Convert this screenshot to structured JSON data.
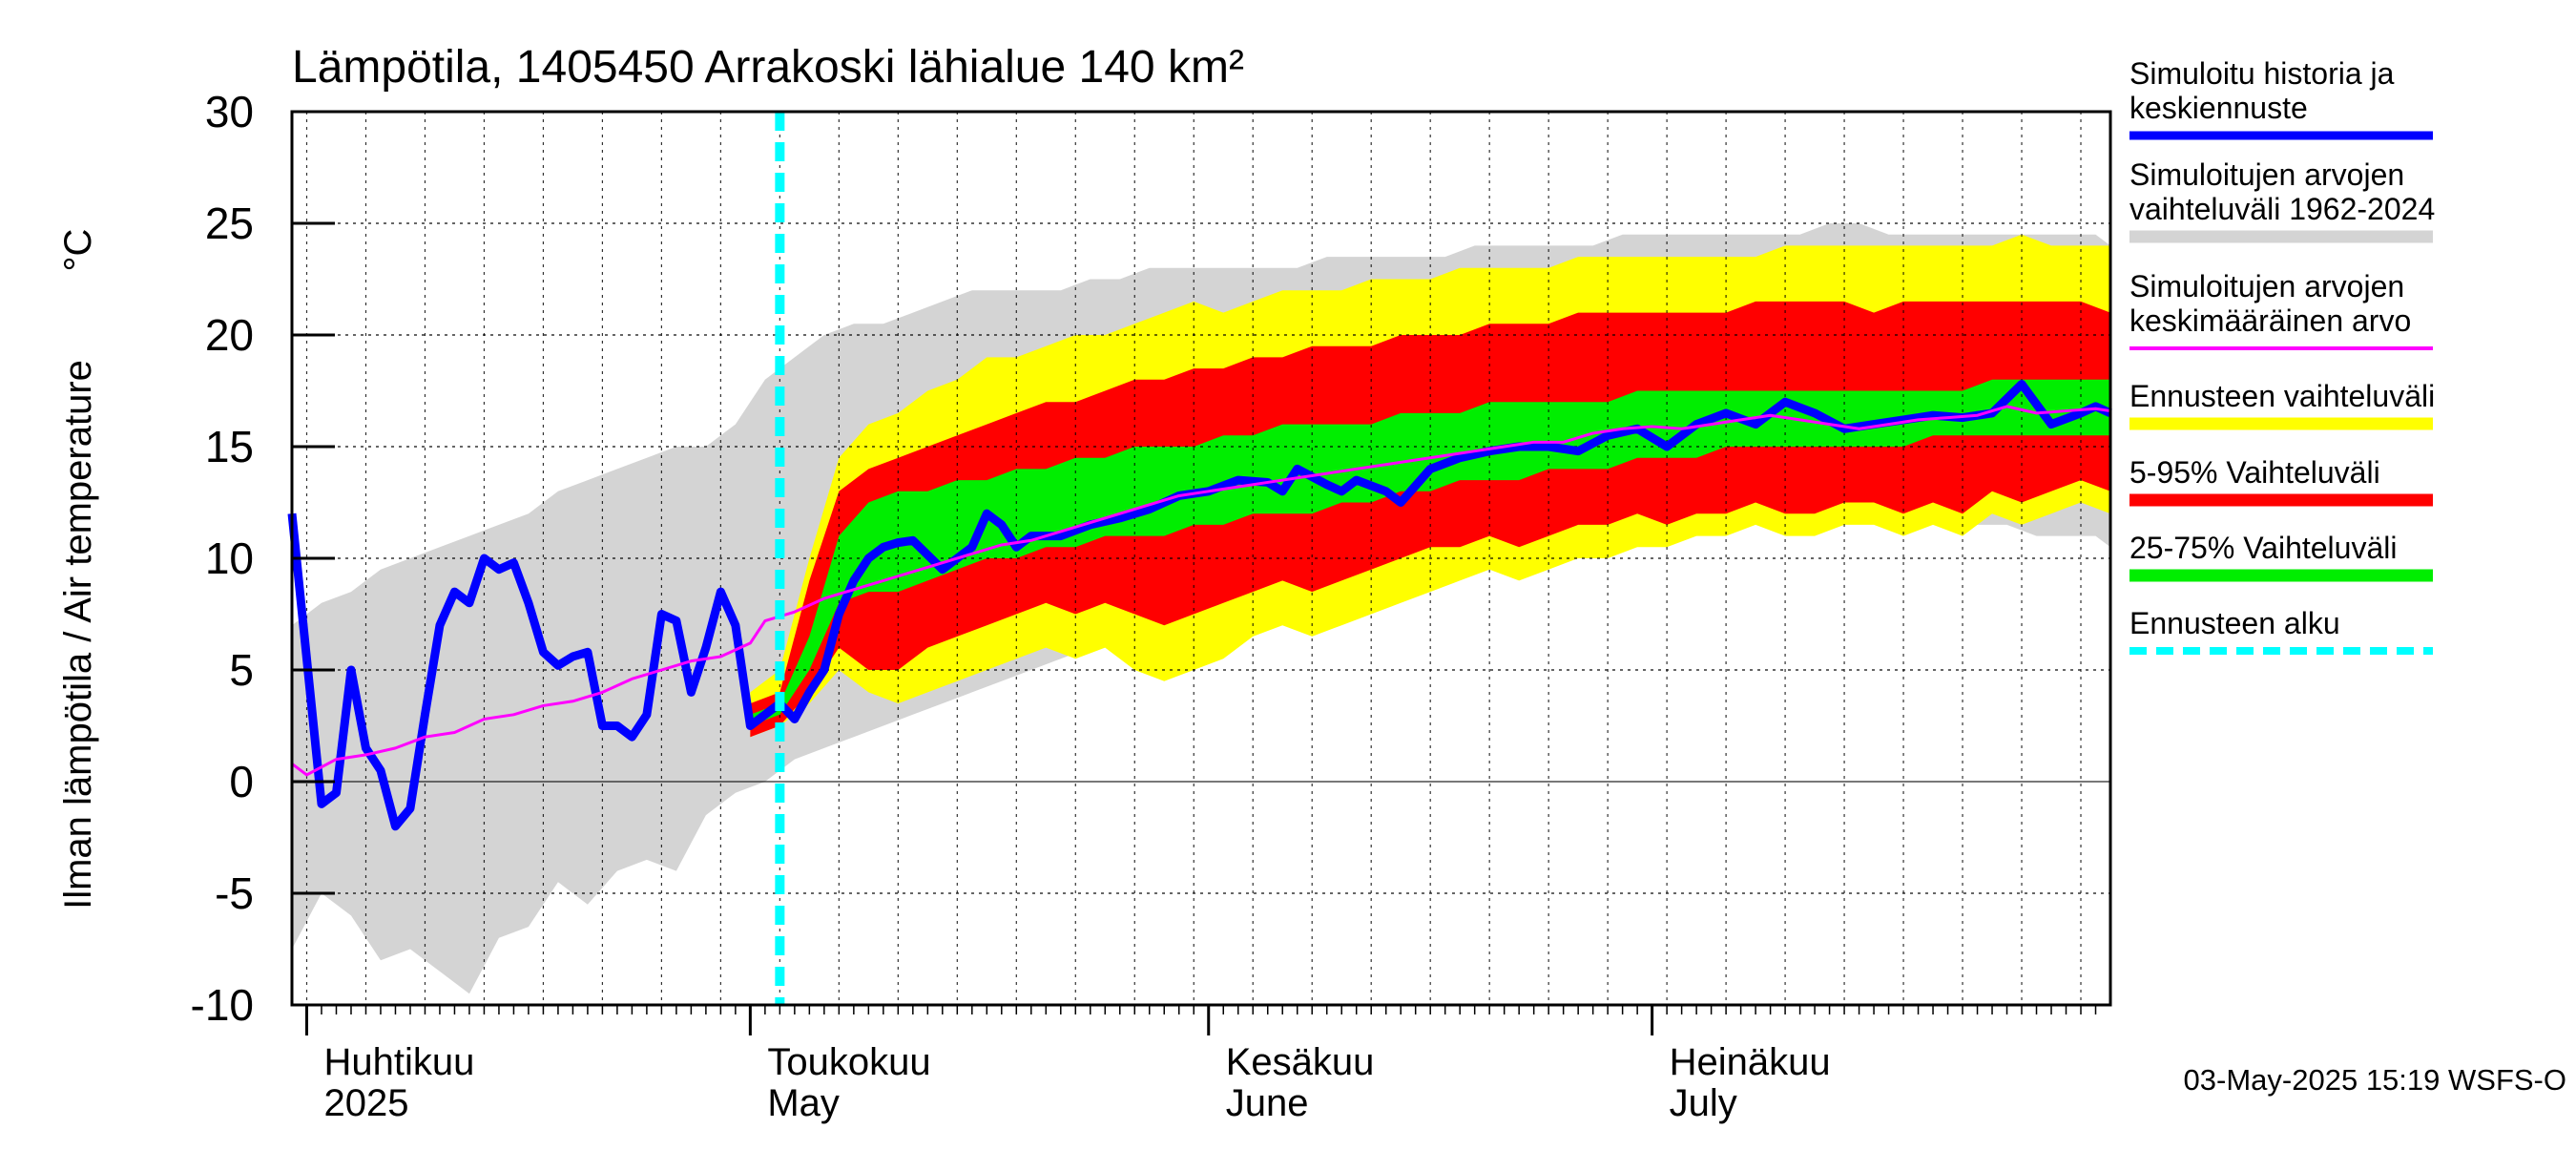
{
  "chart_data": {
    "type": "area",
    "title": "Lämpötila, 1405450 Arrakoski lähialue 140 km²",
    "ylabel": "Ilman lämpötila / Air temperature",
    "yunit": "°C",
    "xlabel": "",
    "ylim": [
      -10,
      30
    ],
    "yticks": [
      30,
      25,
      20,
      15,
      10,
      5,
      0,
      -5,
      -10
    ],
    "xlim": [
      "2025-03-31",
      "2025-08-01"
    ],
    "forecast_start": "2025-05-03",
    "x_tick_labels": [
      {
        "date": "2025-04-01",
        "fi": "Huhtikuu",
        "en": "2025"
      },
      {
        "date": "2025-05-01",
        "fi": "Toukokuu",
        "en": "May"
      },
      {
        "date": "2025-06-01",
        "fi": "Kesäkuu",
        "en": "June"
      },
      {
        "date": "2025-07-01",
        "fi": "Heinäkuu",
        "en": "July"
      }
    ],
    "grid": true,
    "legend_position": "right",
    "footer": "03-May-2025 15:19 WSFS-O",
    "colors": {
      "history_band": "#d4d4d4",
      "forecast_range": "#ffff00",
      "p5_95": "#ff0000",
      "p25_75": "#00ee00",
      "simulated": "#0000ff",
      "mean": "#ff00ff",
      "forecast_start": "#00ffff"
    },
    "series": [
      {
        "key": "simulated",
        "name": "Simuloitu historia ja keskiennuste",
        "x": [
          "2025-03-31",
          "2025-04-02",
          "2025-04-03",
          "2025-04-04",
          "2025-04-05",
          "2025-04-06",
          "2025-04-07",
          "2025-04-08",
          "2025-04-09",
          "2025-04-10",
          "2025-04-11",
          "2025-04-12",
          "2025-04-13",
          "2025-04-14",
          "2025-04-15",
          "2025-04-16",
          "2025-04-17",
          "2025-04-18",
          "2025-04-19",
          "2025-04-20",
          "2025-04-21",
          "2025-04-22",
          "2025-04-23",
          "2025-04-24",
          "2025-04-25",
          "2025-04-26",
          "2025-04-27",
          "2025-04-28",
          "2025-04-29",
          "2025-04-30",
          "2025-05-01",
          "2025-05-02",
          "2025-05-03",
          "2025-05-04",
          "2025-05-05",
          "2025-05-06",
          "2025-05-07",
          "2025-05-08",
          "2025-05-09",
          "2025-05-10",
          "2025-05-11",
          "2025-05-12",
          "2025-05-14",
          "2025-05-16",
          "2025-05-17",
          "2025-05-18",
          "2025-05-19",
          "2025-05-20",
          "2025-05-22",
          "2025-05-24",
          "2025-05-26",
          "2025-05-28",
          "2025-05-30",
          "2025-06-01",
          "2025-06-03",
          "2025-06-05",
          "2025-06-06",
          "2025-06-07",
          "2025-06-09",
          "2025-06-10",
          "2025-06-11",
          "2025-06-13",
          "2025-06-14",
          "2025-06-16",
          "2025-06-18",
          "2025-06-20",
          "2025-06-22",
          "2025-06-24",
          "2025-06-26",
          "2025-06-28",
          "2025-06-30",
          "2025-07-02",
          "2025-07-04",
          "2025-07-06",
          "2025-07-08",
          "2025-07-10",
          "2025-07-12",
          "2025-07-14",
          "2025-07-16",
          "2025-07-18",
          "2025-07-20",
          "2025-07-22",
          "2025-07-24",
          "2025-07-26",
          "2025-07-28",
          "2025-07-30",
          "2025-07-31",
          "2025-08-01"
        ],
        "values": [
          12.0,
          -1.0,
          -0.5,
          5.0,
          1.5,
          0.5,
          -2.0,
          -1.2,
          3.0,
          7.0,
          8.5,
          8.0,
          10.0,
          9.5,
          9.8,
          8.0,
          5.8,
          5.2,
          5.6,
          5.8,
          2.5,
          2.5,
          2.0,
          3.0,
          7.5,
          7.2,
          4.0,
          6.0,
          8.5,
          7.0,
          2.5,
          3.0,
          3.5,
          2.8,
          4.0,
          5.0,
          7.5,
          9.0,
          10.0,
          10.5,
          10.7,
          10.8,
          9.5,
          10.5,
          12.0,
          11.5,
          10.5,
          11.0,
          11.0,
          11.5,
          11.8,
          12.2,
          12.8,
          13.0,
          13.5,
          13.4,
          13.0,
          14.0,
          13.3,
          13.0,
          13.5,
          13.0,
          12.5,
          14.0,
          14.5,
          14.8,
          15.0,
          15.0,
          14.8,
          15.5,
          15.8,
          15.0,
          16.0,
          16.5,
          16.0,
          17.0,
          16.5,
          15.8,
          16.0,
          16.2,
          16.4,
          16.3,
          16.5,
          17.8,
          16.0,
          16.5,
          16.8,
          16.5
        ]
      },
      {
        "key": "mean",
        "name": "Simuloitujen arvojen keskimääräinen arvo",
        "x": [
          "2025-03-31",
          "2025-04-01",
          "2025-04-03",
          "2025-04-05",
          "2025-04-07",
          "2025-04-09",
          "2025-04-11",
          "2025-04-13",
          "2025-04-15",
          "2025-04-17",
          "2025-04-19",
          "2025-04-21",
          "2025-04-23",
          "2025-04-25",
          "2025-04-27",
          "2025-04-29",
          "2025-05-01",
          "2025-05-02",
          "2025-05-04",
          "2025-05-06",
          "2025-05-08",
          "2025-05-10",
          "2025-05-12",
          "2025-05-14",
          "2025-05-16",
          "2025-05-18",
          "2025-05-20",
          "2025-05-22",
          "2025-05-24",
          "2025-05-26",
          "2025-05-28",
          "2025-05-30",
          "2025-06-01",
          "2025-06-03",
          "2025-06-05",
          "2025-06-07",
          "2025-06-09",
          "2025-06-11",
          "2025-06-13",
          "2025-06-15",
          "2025-06-17",
          "2025-06-19",
          "2025-06-21",
          "2025-06-23",
          "2025-06-25",
          "2025-06-27",
          "2025-06-29",
          "2025-07-01",
          "2025-07-03",
          "2025-07-05",
          "2025-07-07",
          "2025-07-09",
          "2025-07-11",
          "2025-07-13",
          "2025-07-15",
          "2025-07-17",
          "2025-07-19",
          "2025-07-21",
          "2025-07-23",
          "2025-07-25",
          "2025-07-27",
          "2025-07-29",
          "2025-07-31",
          "2025-08-01"
        ],
        "values": [
          0.8,
          0.3,
          1.0,
          1.2,
          1.5,
          2.0,
          2.2,
          2.8,
          3.0,
          3.4,
          3.6,
          4.0,
          4.6,
          5.0,
          5.4,
          5.6,
          6.2,
          7.2,
          7.6,
          8.2,
          8.6,
          9.0,
          9.4,
          9.8,
          10.2,
          10.6,
          10.8,
          11.2,
          11.6,
          12.0,
          12.4,
          12.8,
          13.0,
          13.2,
          13.4,
          13.6,
          13.8,
          14.0,
          14.2,
          14.4,
          14.6,
          14.8,
          15.0,
          15.2,
          15.2,
          15.6,
          15.8,
          15.9,
          15.8,
          16.0,
          16.2,
          16.4,
          16.2,
          16.0,
          15.8,
          16.0,
          16.2,
          16.3,
          16.4,
          16.8,
          16.5,
          16.6,
          16.7,
          16.6
        ]
      },
      {
        "key": "history_band",
        "name": "Simuloitujen arvojen vaihteluväli 1962-2024",
        "x": [
          "2025-03-31",
          "2025-04-02",
          "2025-04-04",
          "2025-04-06",
          "2025-04-08",
          "2025-04-10",
          "2025-04-12",
          "2025-04-14",
          "2025-04-16",
          "2025-04-18",
          "2025-04-20",
          "2025-04-22",
          "2025-04-24",
          "2025-04-26",
          "2025-04-28",
          "2025-04-30",
          "2025-05-02",
          "2025-05-04",
          "2025-05-06",
          "2025-05-08",
          "2025-05-10",
          "2025-05-12",
          "2025-05-14",
          "2025-05-16",
          "2025-05-18",
          "2025-05-20",
          "2025-05-22",
          "2025-05-24",
          "2025-05-26",
          "2025-05-28",
          "2025-05-30",
          "2025-06-01",
          "2025-06-03",
          "2025-06-05",
          "2025-06-07",
          "2025-06-09",
          "2025-06-11",
          "2025-06-13",
          "2025-06-15",
          "2025-06-17",
          "2025-06-19",
          "2025-06-21",
          "2025-06-23",
          "2025-06-25",
          "2025-06-27",
          "2025-06-29",
          "2025-07-01",
          "2025-07-03",
          "2025-07-05",
          "2025-07-07",
          "2025-07-09",
          "2025-07-11",
          "2025-07-13",
          "2025-07-15",
          "2025-07-17",
          "2025-07-19",
          "2025-07-21",
          "2025-07-23",
          "2025-07-25",
          "2025-07-27",
          "2025-07-29",
          "2025-07-31",
          "2025-08-01"
        ],
        "low": [
          -7.5,
          -5.0,
          -6.0,
          -8.0,
          -7.5,
          -8.5,
          -9.5,
          -7.0,
          -6.5,
          -4.5,
          -5.5,
          -4.0,
          -3.5,
          -4.0,
          -1.5,
          -0.5,
          0.0,
          1.0,
          1.5,
          2.0,
          2.5,
          3.0,
          3.5,
          4.0,
          4.5,
          5.0,
          5.5,
          6.0,
          6.5,
          7.0,
          7.5,
          8.0,
          8.5,
          9.0,
          9.5,
          9.5,
          10.0,
          10.0,
          10.5,
          10.5,
          10.5,
          11.0,
          11.0,
          11.0,
          11.5,
          11.5,
          11.0,
          11.5,
          11.5,
          12.0,
          12.0,
          12.0,
          12.0,
          12.0,
          11.5,
          11.5,
          11.5,
          11.5,
          11.5,
          11.0,
          11.0,
          11.0,
          10.5
        ],
        "high": [
          7.0,
          8.0,
          8.5,
          9.5,
          10.0,
          10.5,
          11.0,
          11.5,
          12.0,
          13.0,
          13.5,
          14.0,
          14.5,
          15.0,
          15.0,
          16.0,
          18.0,
          19.0,
          20.0,
          20.5,
          20.5,
          21.0,
          21.5,
          22.0,
          22.0,
          22.0,
          22.0,
          22.5,
          22.5,
          23.0,
          23.0,
          23.0,
          23.0,
          23.0,
          23.0,
          23.5,
          23.5,
          23.5,
          23.5,
          23.5,
          24.0,
          24.0,
          24.0,
          24.0,
          24.0,
          24.5,
          24.5,
          24.5,
          24.5,
          24.5,
          24.5,
          24.5,
          25.0,
          25.0,
          24.5,
          24.5,
          24.5,
          24.5,
          24.5,
          24.5,
          24.5,
          24.5,
          24.0
        ]
      },
      {
        "key": "forecast_range",
        "name": "Ennusteen vaihteluväli",
        "x": [
          "2025-05-01",
          "2025-05-03",
          "2025-05-05",
          "2025-05-07",
          "2025-05-09",
          "2025-05-11",
          "2025-05-13",
          "2025-05-15",
          "2025-05-17",
          "2025-05-19",
          "2025-05-21",
          "2025-05-23",
          "2025-05-25",
          "2025-05-27",
          "2025-05-29",
          "2025-05-31",
          "2025-06-02",
          "2025-06-04",
          "2025-06-06",
          "2025-06-08",
          "2025-06-10",
          "2025-06-12",
          "2025-06-14",
          "2025-06-16",
          "2025-06-18",
          "2025-06-20",
          "2025-06-22",
          "2025-06-24",
          "2025-06-26",
          "2025-06-28",
          "2025-06-30",
          "2025-07-02",
          "2025-07-04",
          "2025-07-06",
          "2025-07-08",
          "2025-07-10",
          "2025-07-12",
          "2025-07-14",
          "2025-07-16",
          "2025-07-18",
          "2025-07-20",
          "2025-07-22",
          "2025-07-24",
          "2025-07-26",
          "2025-07-28",
          "2025-07-30",
          "2025-08-01"
        ],
        "low": [
          2.0,
          2.5,
          3.5,
          5.0,
          4.0,
          3.5,
          4.0,
          4.5,
          5.0,
          5.5,
          6.0,
          5.5,
          6.0,
          5.0,
          4.5,
          5.0,
          5.5,
          6.5,
          7.0,
          6.5,
          7.0,
          7.5,
          8.0,
          8.5,
          9.0,
          9.5,
          9.0,
          9.5,
          10.0,
          10.0,
          10.5,
          10.5,
          11.0,
          11.0,
          11.5,
          11.0,
          11.0,
          11.5,
          11.5,
          11.0,
          11.5,
          11.0,
          12.0,
          11.5,
          12.0,
          12.5,
          12.0
        ],
        "high": [
          4.0,
          5.0,
          10.0,
          14.5,
          16.0,
          16.5,
          17.5,
          18.0,
          19.0,
          19.0,
          19.5,
          20.0,
          20.0,
          20.5,
          21.0,
          21.5,
          21.0,
          21.5,
          22.0,
          22.0,
          22.0,
          22.5,
          22.5,
          22.5,
          23.0,
          23.0,
          23.0,
          23.0,
          23.5,
          23.5,
          23.5,
          23.5,
          23.5,
          23.5,
          23.5,
          24.0,
          24.0,
          24.0,
          24.0,
          24.0,
          24.0,
          24.0,
          24.0,
          24.5,
          24.0,
          24.0,
          24.0
        ]
      },
      {
        "key": "p5_95",
        "name": "5-95% Vaihteluväli",
        "x": [
          "2025-05-01",
          "2025-05-03",
          "2025-05-05",
          "2025-05-07",
          "2025-05-09",
          "2025-05-11",
          "2025-05-13",
          "2025-05-15",
          "2025-05-17",
          "2025-05-19",
          "2025-05-21",
          "2025-05-23",
          "2025-05-25",
          "2025-05-27",
          "2025-05-29",
          "2025-05-31",
          "2025-06-02",
          "2025-06-04",
          "2025-06-06",
          "2025-06-08",
          "2025-06-10",
          "2025-06-12",
          "2025-06-14",
          "2025-06-16",
          "2025-06-18",
          "2025-06-20",
          "2025-06-22",
          "2025-06-24",
          "2025-06-26",
          "2025-06-28",
          "2025-06-30",
          "2025-07-02",
          "2025-07-04",
          "2025-07-06",
          "2025-07-08",
          "2025-07-10",
          "2025-07-12",
          "2025-07-14",
          "2025-07-16",
          "2025-07-18",
          "2025-07-20",
          "2025-07-22",
          "2025-07-24",
          "2025-07-26",
          "2025-07-28",
          "2025-07-30",
          "2025-08-01"
        ],
        "low": [
          2.0,
          2.5,
          4.0,
          6.0,
          5.0,
          5.0,
          6.0,
          6.5,
          7.0,
          7.5,
          8.0,
          7.5,
          8.0,
          7.5,
          7.0,
          7.5,
          8.0,
          8.5,
          9.0,
          8.5,
          9.0,
          9.5,
          10.0,
          10.5,
          10.5,
          11.0,
          10.5,
          11.0,
          11.5,
          11.5,
          12.0,
          11.5,
          12.0,
          12.0,
          12.5,
          12.0,
          12.0,
          12.5,
          12.5,
          12.0,
          12.5,
          12.0,
          13.0,
          12.5,
          13.0,
          13.5,
          13.0
        ],
        "high": [
          3.5,
          4.0,
          9.0,
          13.0,
          14.0,
          14.5,
          15.0,
          15.5,
          16.0,
          16.5,
          17.0,
          17.0,
          17.5,
          18.0,
          18.0,
          18.5,
          18.5,
          19.0,
          19.0,
          19.5,
          19.5,
          19.5,
          20.0,
          20.0,
          20.0,
          20.5,
          20.5,
          20.5,
          21.0,
          21.0,
          21.0,
          21.0,
          21.0,
          21.0,
          21.5,
          21.5,
          21.5,
          21.5,
          21.0,
          21.5,
          21.5,
          21.5,
          21.5,
          21.5,
          21.5,
          21.5,
          21.0
        ]
      },
      {
        "key": "p25_75",
        "name": "25-75% Vaihteluväli",
        "x": [
          "2025-05-01",
          "2025-05-03",
          "2025-05-05",
          "2025-05-07",
          "2025-05-09",
          "2025-05-11",
          "2025-05-13",
          "2025-05-15",
          "2025-05-17",
          "2025-05-19",
          "2025-05-21",
          "2025-05-23",
          "2025-05-25",
          "2025-05-27",
          "2025-05-29",
          "2025-05-31",
          "2025-06-02",
          "2025-06-04",
          "2025-06-06",
          "2025-06-08",
          "2025-06-10",
          "2025-06-12",
          "2025-06-14",
          "2025-06-16",
          "2025-06-18",
          "2025-06-20",
          "2025-06-22",
          "2025-06-24",
          "2025-06-26",
          "2025-06-28",
          "2025-06-30",
          "2025-07-02",
          "2025-07-04",
          "2025-07-06",
          "2025-07-08",
          "2025-07-10",
          "2025-07-12",
          "2025-07-14",
          "2025-07-16",
          "2025-07-18",
          "2025-07-20",
          "2025-07-22",
          "2025-07-24",
          "2025-07-26",
          "2025-07-28",
          "2025-07-30",
          "2025-08-01"
        ],
        "low": [
          2.5,
          3.0,
          5.0,
          8.0,
          8.5,
          8.5,
          9.0,
          9.5,
          10.0,
          10.0,
          10.5,
          10.5,
          11.0,
          11.0,
          11.0,
          11.5,
          11.5,
          12.0,
          12.0,
          12.0,
          12.5,
          12.5,
          13.0,
          13.0,
          13.5,
          13.5,
          13.5,
          14.0,
          14.0,
          14.0,
          14.5,
          14.5,
          14.5,
          15.0,
          15.0,
          15.0,
          15.0,
          15.0,
          15.0,
          15.0,
          15.5,
          15.5,
          15.5,
          15.5,
          15.5,
          15.5,
          15.5
        ],
        "high": [
          3.0,
          3.5,
          6.5,
          11.0,
          12.5,
          13.0,
          13.0,
          13.5,
          13.5,
          14.0,
          14.0,
          14.5,
          14.5,
          15.0,
          15.0,
          15.0,
          15.5,
          15.5,
          16.0,
          16.0,
          16.0,
          16.0,
          16.5,
          16.5,
          16.5,
          17.0,
          17.0,
          17.0,
          17.0,
          17.0,
          17.5,
          17.5,
          17.5,
          17.5,
          17.5,
          17.5,
          17.5,
          17.5,
          17.5,
          17.5,
          17.5,
          17.5,
          18.0,
          18.0,
          18.0,
          18.0,
          18.0
        ]
      },
      {
        "key": "forecast_start",
        "name": "Ennusteen alku"
      }
    ]
  }
}
